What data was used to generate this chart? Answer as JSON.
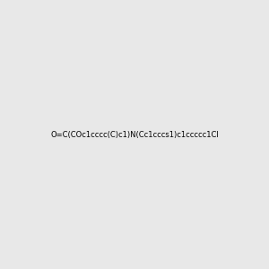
{
  "smiles": "O=C(COc1cccc(C)c1)N(Cc1cccs1)c1ccccc1Cl",
  "title": "",
  "bg_color": "#e8e8e8",
  "atom_colors": {
    "S": "#cccc00",
    "N": "#0000ff",
    "O": "#ff0000",
    "Cl": "#00cc00",
    "C": "#000000"
  },
  "figsize": [
    3.0,
    3.0
  ],
  "dpi": 100
}
